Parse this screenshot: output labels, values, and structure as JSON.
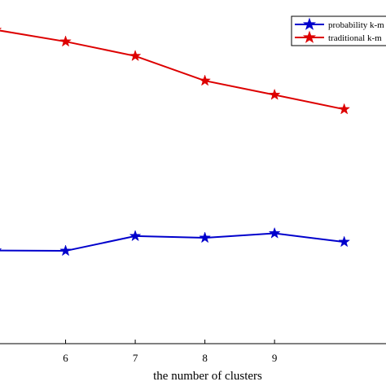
{
  "chart_data": {
    "type": "line",
    "xlabel": "the number of clusters",
    "ylabel": "",
    "title": "",
    "x": [
      5,
      6,
      7,
      8,
      9,
      10
    ],
    "xticks": [
      "6",
      "7",
      "8",
      "9"
    ],
    "xlim": [
      5,
      10.6
    ],
    "ylim": [
      0,
      1
    ],
    "grid": false,
    "legend_position": "top-right",
    "series": [
      {
        "name": "probability k-m",
        "color": "#0000cc",
        "marker": "star",
        "values": [
          0.271,
          0.27,
          0.313,
          0.308,
          0.321,
          0.296
        ]
      },
      {
        "name": "traditional k-m",
        "color": "#dd0000",
        "marker": "star",
        "values": [
          0.913,
          0.879,
          0.837,
          0.765,
          0.724,
          0.682
        ]
      }
    ]
  }
}
